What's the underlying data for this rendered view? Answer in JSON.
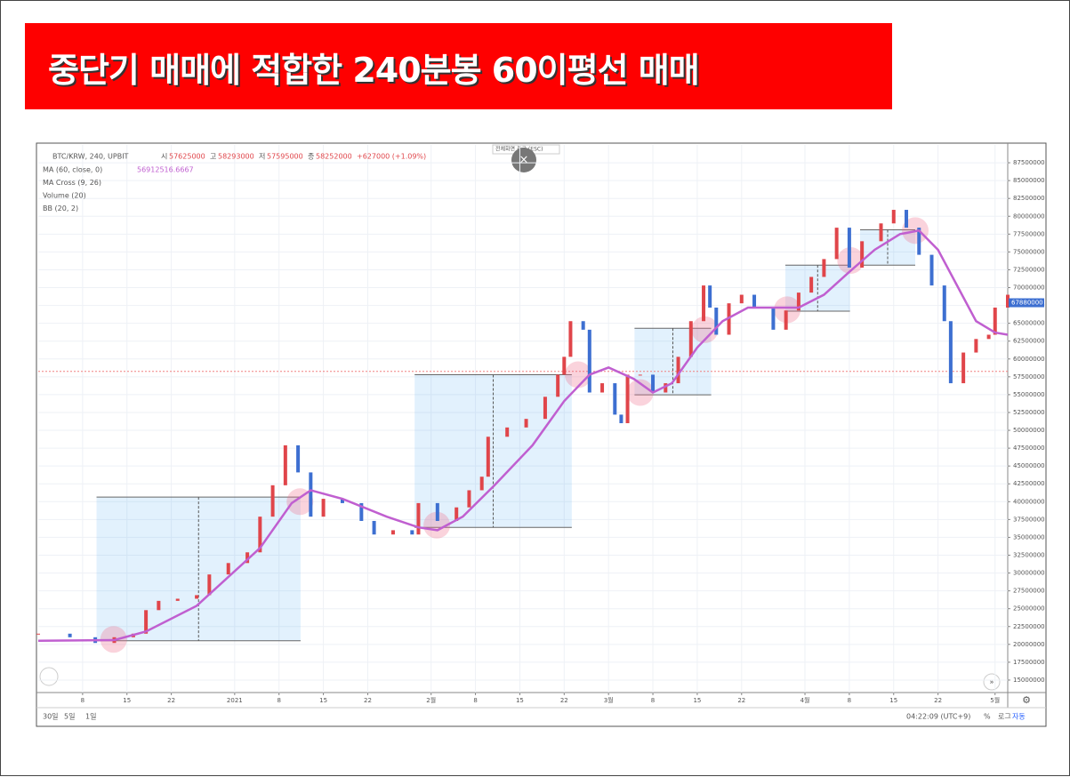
{
  "banner": {
    "title": "중단기 매매에 적합한 240분봉 60이평선 매매"
  },
  "toolbar": {
    "symbol": "BTC/KRW, 240, UPBIT",
    "ohlc": [
      {
        "label": "시",
        "value": 57625000
      },
      {
        "label": "고",
        "value": 58293000
      },
      {
        "label": "저",
        "value": 57595000
      },
      {
        "label": "종",
        "value": 58252000
      }
    ],
    "change": "+627000 (+1.09%)",
    "fullscreen": "전체화면 종료 (ESC)",
    "indicators": [
      {
        "name": "MA (60, close, 0)",
        "value": "56912516.6667"
      },
      {
        "name": "MA Cross (9, 26)"
      },
      {
        "name": "Volume (20)"
      },
      {
        "name": "BB (20, 2)"
      }
    ]
  },
  "footer": {
    "ranges": [
      "30일",
      "5일",
      "1일"
    ],
    "time": "04:22:09 (UTC+9)",
    "buttons": [
      "%",
      "로그",
      "자동"
    ]
  },
  "chart_data": {
    "type": "candlestick",
    "x": [
      0,
      5,
      9,
      12,
      15,
      17,
      19,
      22,
      25,
      27,
      30,
      33,
      35,
      37,
      39,
      41,
      43,
      45,
      48,
      51,
      53,
      56,
      59,
      60,
      63,
      66,
      68,
      70,
      71,
      74,
      77,
      80,
      82,
      83,
      84,
      86,
      87,
      89,
      91,
      92,
      93,
      95,
      97,
      99,
      101,
      103,
      105,
      106,
      107,
      109,
      111,
      113,
      116,
      118,
      120,
      122,
      124,
      126,
      128,
      130,
      133,
      135,
      137,
      139,
      141,
      143,
      144,
      146,
      148,
      150,
      151,
      153
    ],
    "series": [
      {
        "name": "BTC/KRW",
        "up_color": "#e0454a",
        "down_color": "#3d6fd1",
        "values": [
          21500000,
          21000000,
          20200000,
          21000000,
          21500000,
          24800000,
          26100000,
          26400000,
          26900000,
          29800000,
          31400000,
          32900000,
          37900000,
          42300000,
          47900000,
          44100000,
          37900000,
          40400000,
          39800000,
          37300000,
          35400000,
          36000000,
          35400000,
          39800000,
          37300000,
          39200000,
          41600000,
          43500000,
          49100000,
          50400000,
          51600000,
          54700000,
          57800000,
          60300000,
          65300000,
          64100000,
          55300000,
          56600000,
          52200000,
          51000000,
          57800000,
          57800000,
          55300000,
          56600000,
          60300000,
          65300000,
          70300000,
          67200000,
          63400000,
          67800000,
          69000000,
          67200000,
          64100000,
          66800000,
          69300000,
          71500000,
          74000000,
          78400000,
          72800000,
          76500000,
          79000000,
          80900000,
          78400000,
          74600000,
          70300000,
          65300000,
          56600000,
          60900000,
          62800000,
          63400000,
          67200000,
          69000000
        ]
      },
      {
        "name": "MA (60)",
        "color": "#c05fd0",
        "x": [
          0,
          12,
          17,
          25,
          35,
          40,
          43,
          48,
          55,
          60,
          63,
          67,
          72,
          78,
          83,
          87,
          90,
          94,
          97,
          100,
          104,
          108,
          112,
          116,
          120,
          124,
          128,
          132,
          136,
          139,
          142,
          145,
          148,
          151,
          153
        ],
        "values": [
          20500000,
          20600000,
          21800000,
          25400000,
          33500000,
          39800000,
          41600000,
          40400000,
          37900000,
          36400000,
          36000000,
          37900000,
          42300000,
          47900000,
          54100000,
          57800000,
          58800000,
          57200000,
          55300000,
          56600000,
          61600000,
          65300000,
          67200000,
          67200000,
          67200000,
          69000000,
          72200000,
          75300000,
          77500000,
          78000000,
          75300000,
          70300000,
          65300000,
          63700000,
          63400000
        ]
      }
    ],
    "last_price": 67880000,
    "close_line": 58252000,
    "ranges": [
      {
        "x0": 9.2,
        "x1": 41.4,
        "low": 20500000,
        "high": 40650000
      },
      {
        "x0": 59.4,
        "x1": 84.2,
        "low": 36400000,
        "high": 57800000
      },
      {
        "x0": 94.1,
        "x1": 106.2,
        "low": 54980000,
        "high": 64300000
      },
      {
        "x0": 117.9,
        "x1": 128.1,
        "low": 66700000,
        "high": 73150000
      },
      {
        "x0": 129.7,
        "x1": 138.4,
        "low": 73150000,
        "high": 78100000
      }
    ],
    "crossings": {
      "x": [
        11.9,
        41.3,
        62.9,
        85.2,
        95,
        105.2,
        118.2,
        128.2,
        138.4
      ],
      "values": [
        20700000,
        40000000,
        36700000,
        57800000,
        55300000,
        64100000,
        66900000,
        73800000,
        78000000
      ]
    },
    "xlim": [
      0,
      153
    ],
    "ylim": [
      13250000,
      90000000
    ],
    "xticks": [
      {
        "value": 7,
        "label": "8"
      },
      {
        "value": 14,
        "label": "15"
      },
      {
        "value": 21,
        "label": "22"
      },
      {
        "value": 31,
        "label": "2021"
      },
      {
        "value": 38,
        "label": "8"
      },
      {
        "value": 45,
        "label": "15"
      },
      {
        "value": 52,
        "label": "22"
      },
      {
        "value": 62,
        "label": "2월"
      },
      {
        "value": 69,
        "label": "8"
      },
      {
        "value": 76,
        "label": "15"
      },
      {
        "value": 83,
        "label": "22"
      },
      {
        "value": 90,
        "label": "3월"
      },
      {
        "value": 97,
        "label": "8"
      },
      {
        "value": 104,
        "label": "15"
      },
      {
        "value": 111,
        "label": "22"
      },
      {
        "value": 121,
        "label": "4월"
      },
      {
        "value": 128,
        "label": "8"
      },
      {
        "value": 135,
        "label": "15"
      },
      {
        "value": 142,
        "label": "22"
      },
      {
        "value": 151,
        "label": "5월"
      }
    ],
    "yticks": [
      15000000,
      17500000,
      20000000,
      22500000,
      25000000,
      27500000,
      30000000,
      32500000,
      35000000,
      37500000,
      40000000,
      42500000,
      45000000,
      47500000,
      50000000,
      52500000,
      55000000,
      57500000,
      60000000,
      62500000,
      65000000,
      67500000,
      70000000,
      72500000,
      75000000,
      77500000,
      80000000,
      82500000,
      85000000,
      87500000
    ],
    "grid": true
  }
}
